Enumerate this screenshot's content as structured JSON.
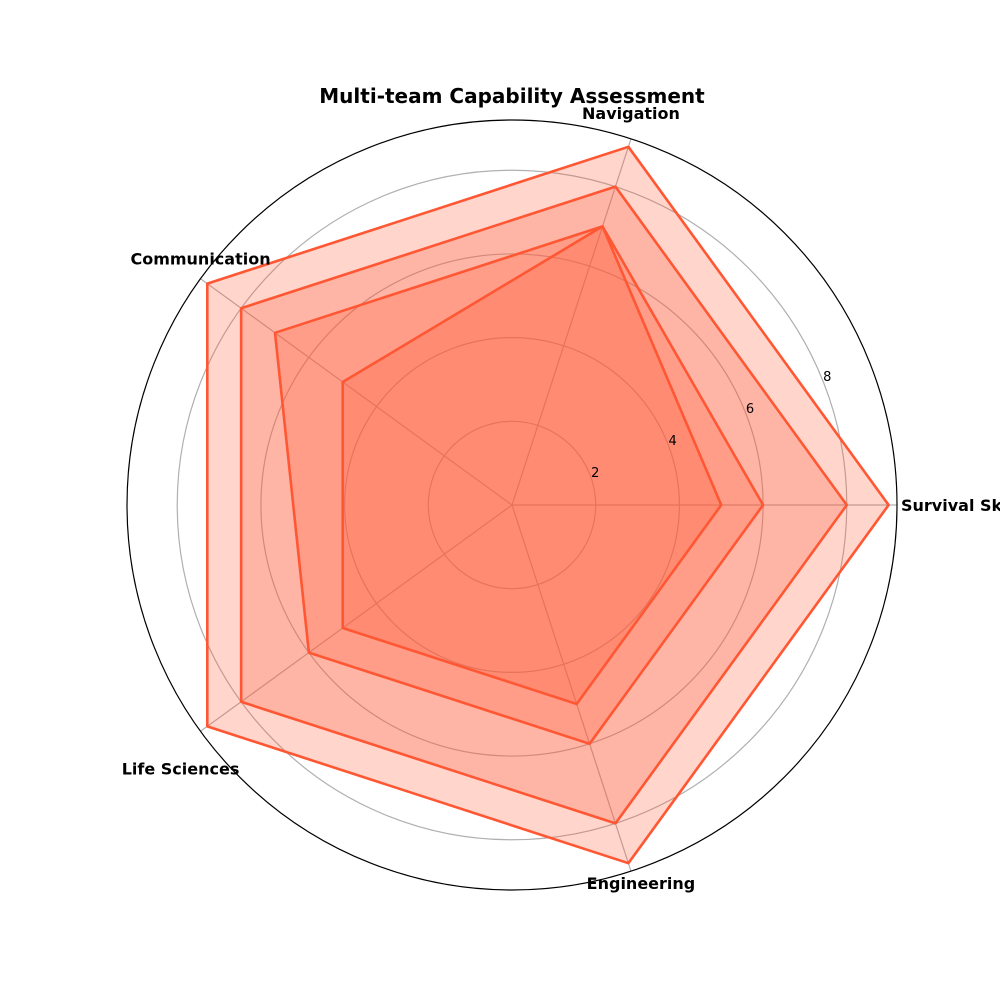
{
  "chart_data": {
    "type": "radar",
    "title": "Multi-team Capability Assessment",
    "axes": [
      "Survival Skills",
      "Navigation",
      "Communication",
      "Life Sciences",
      "Engineering"
    ],
    "r_ticks": [
      2,
      4,
      6,
      8
    ],
    "rlim": [
      0,
      9.2
    ],
    "grid": true,
    "series": [
      {
        "values": [
          9,
          9,
          9,
          9,
          9
        ],
        "fill_opacity": 0.25
      },
      {
        "values": [
          8,
          8,
          8,
          8,
          8
        ],
        "fill_opacity": 0.25
      },
      {
        "values": [
          6,
          7,
          7,
          6,
          6
        ],
        "fill_opacity": 0.25
      },
      {
        "values": [
          5,
          7,
          5,
          5,
          5
        ],
        "fill_opacity": 0.25
      }
    ],
    "colors": {
      "series": "#ff5733",
      "grid": "#b0b0b0",
      "frame": "#000000"
    }
  }
}
